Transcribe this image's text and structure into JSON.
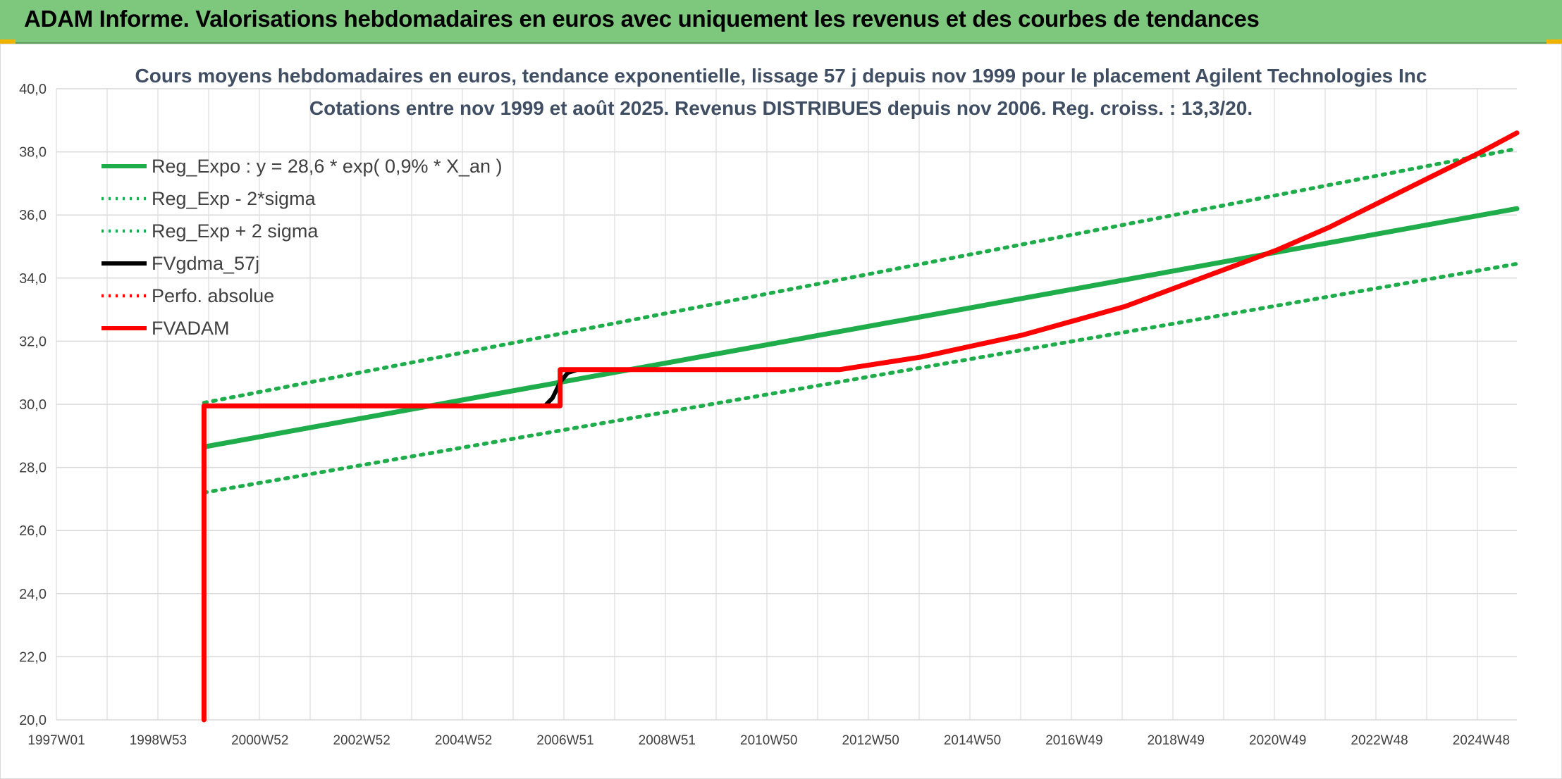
{
  "header": {
    "title": "ADAM Informe. Valorisations hebdomadaires en euros avec uniquement les revenus et des courbes de tendances"
  },
  "colors": {
    "banner": "#7dc87d",
    "reg_green": "#1fad4b",
    "adam_red": "#ff0000",
    "black": "#000000",
    "grid": "#d9d9d9"
  },
  "chart_data": {
    "type": "line",
    "title_line1": "Cours moyens hebdomadaires en euros, tendance exponentielle, lissage 57 j depuis nov 1999 pour le placement Agilent Technologies Inc",
    "title_line2": "Cotations entre nov 1999 et août 2025. Revenus DISTRIBUES depuis nov 2006. Reg. croiss. : 13,3/20.",
    "xlim": [
      1997.0,
      2025.7
    ],
    "ylim": [
      20,
      40
    ],
    "y_ticks": [
      "20,0",
      "22,0",
      "24,0",
      "26,0",
      "28,0",
      "30,0",
      "32,0",
      "34,0",
      "36,0",
      "38,0",
      "40,0"
    ],
    "x_ticks": [
      {
        "label": "1997W01",
        "x": 1997.0
      },
      {
        "label": "1998W53",
        "x": 1999.0
      },
      {
        "label": "2000W52",
        "x": 2001.0
      },
      {
        "label": "2002W52",
        "x": 2003.0
      },
      {
        "label": "2004W52",
        "x": 2005.0
      },
      {
        "label": "2006W51",
        "x": 2007.0
      },
      {
        "label": "2008W51",
        "x": 2009.0
      },
      {
        "label": "2010W50",
        "x": 2011.0
      },
      {
        "label": "2012W50",
        "x": 2013.0
      },
      {
        "label": "2014W50",
        "x": 2015.0
      },
      {
        "label": "2016W49",
        "x": 2017.0
      },
      {
        "label": "2018W49",
        "x": 2019.0
      },
      {
        "label": "2020W49",
        "x": 2021.0
      },
      {
        "label": "2022W48",
        "x": 2023.0
      },
      {
        "label": "2024W48",
        "x": 2025.0
      }
    ],
    "legend_position": "top-left",
    "legend": [
      {
        "label": "Reg_Expo : y = 28,6 * exp( 0,9% *  X_an )",
        "color": "#1fad4b",
        "style": "solid"
      },
      {
        "label": "Reg_Exp - 2*sigma",
        "color": "#1fad4b",
        "style": "dotted"
      },
      {
        "label": "Reg_Exp + 2 sigma",
        "color": "#1fad4b",
        "style": "dotted"
      },
      {
        "label": "FVgdma_57j",
        "color": "#000000",
        "style": "solid"
      },
      {
        "label": "Perfo. absolue",
        "color": "#ff0000",
        "style": "dotted"
      },
      {
        "label": "FVADAM",
        "color": "#ff0000",
        "style": "solid"
      }
    ],
    "series": [
      {
        "name": "Reg_Expo : y = 28,6 * exp( 0,9% *  X_an )",
        "x": [
          1999.9,
          2025.7
        ],
        "y": [
          28.65,
          36.2
        ]
      },
      {
        "name": "Reg_Exp - 2*sigma",
        "x": [
          1999.9,
          2025.7
        ],
        "y": [
          27.2,
          34.45
        ]
      },
      {
        "name": "Reg_Exp + 2 sigma",
        "x": [
          1999.9,
          2025.7
        ],
        "y": [
          30.05,
          38.1
        ]
      },
      {
        "name": "FVgdma_57j",
        "x": [
          1999.9,
          1999.9,
          2006.6,
          2006.75,
          2006.9,
          2007.05,
          2007.25,
          2012.4
        ],
        "y": [
          20.0,
          29.95,
          29.95,
          30.2,
          30.7,
          31.0,
          31.1,
          31.1
        ]
      },
      {
        "name": "FVADAM",
        "x": [
          1999.9,
          1999.9,
          2006.9,
          2006.9,
          2012.4,
          2014,
          2016,
          2018,
          2020,
          2021,
          2022,
          2023,
          2024,
          2025,
          2025.7
        ],
        "y": [
          20.0,
          29.95,
          29.95,
          31.1,
          31.1,
          31.5,
          32.2,
          33.1,
          34.3,
          34.9,
          35.6,
          36.4,
          37.2,
          38.0,
          38.6
        ]
      }
    ]
  }
}
